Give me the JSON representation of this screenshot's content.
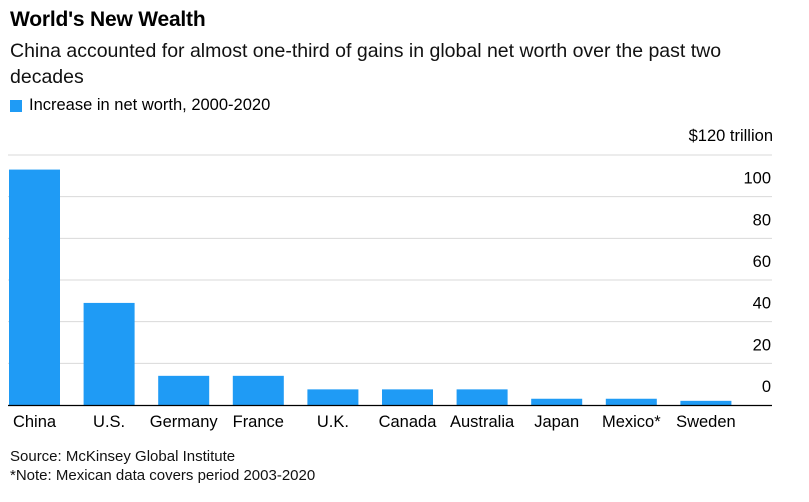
{
  "title": "World's New Wealth",
  "subtitle": "China accounted for almost one-third of gains in global net worth over the past two decades",
  "footer": {
    "source": "Source: McKinsey Global Institute",
    "note": "*Note: Mexican data covers period 2003-2020"
  },
  "colors": {
    "bar": "#1f9bf5",
    "grid": "#d9d9d9",
    "axis": "#000000"
  },
  "chart_data": {
    "type": "bar",
    "title": "World's New Wealth",
    "categories": [
      "China",
      "U.S.",
      "Germany",
      "France",
      "U.K.",
      "Canada",
      "Australia",
      "Japan",
      "Mexico*",
      "Sweden"
    ],
    "series": [
      {
        "name": "Increase in net worth, 2000-2020",
        "values": [
          113,
          49,
          14,
          14,
          7.5,
          7.5,
          7.5,
          3,
          3,
          2
        ]
      }
    ],
    "y_unit_label": "$120 trillion",
    "yticks": [
      0,
      20,
      40,
      60,
      80,
      100
    ],
    "ylim": [
      0,
      120
    ],
    "grid": true
  }
}
